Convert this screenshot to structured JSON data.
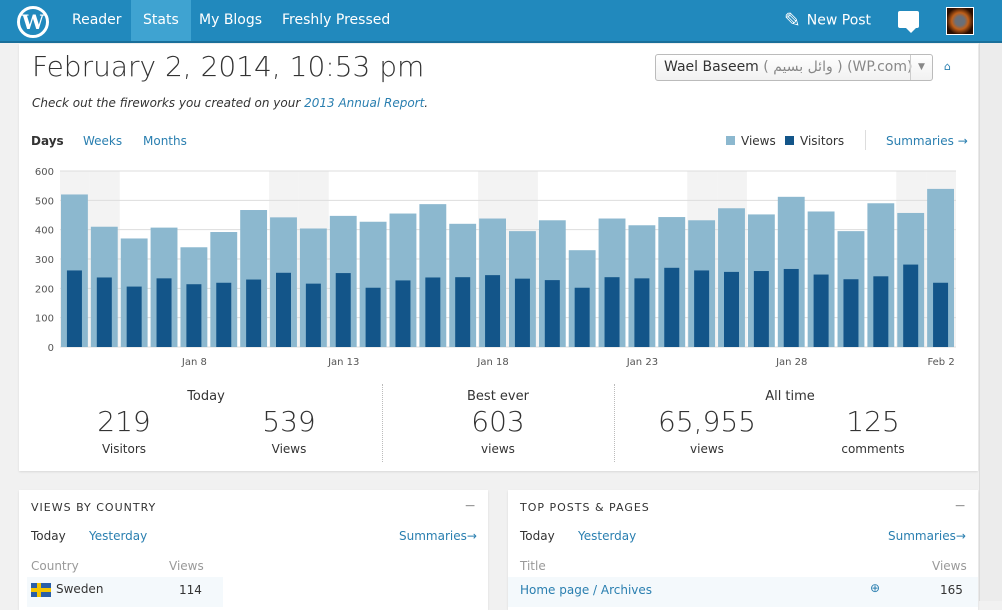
{
  "topbar": {
    "logo": "W",
    "nav": [
      "Reader",
      "Stats",
      "My Blogs",
      "Freshly Pressed"
    ],
    "active": "Stats",
    "new_post": "New Post"
  },
  "header": {
    "title": "February 2, 2014, 10:53 pm",
    "report_prefix": "Check out the fireworks you created on your ",
    "report_link": "2013 Annual Report",
    "report_suffix": ".",
    "blog_name": "Wael Baseem",
    "blog_extra": "( وائل بسيم ) (WP.com)"
  },
  "period_tabs": [
    "Days",
    "Weeks",
    "Months"
  ],
  "legend": {
    "views": "Views",
    "visitors": "Visitors",
    "summaries": "Summaries"
  },
  "colors": {
    "views": "#8cb8cf",
    "visitors": "#135589",
    "accent": "#2189bd"
  },
  "chart_data": {
    "type": "bar",
    "title": "",
    "ylim": [
      0,
      600
    ],
    "yticks": [
      0,
      100,
      200,
      300,
      400,
      500,
      600
    ],
    "x_labels": {
      "4": "Jan 8",
      "9": "Jan 13",
      "14": "Jan 18",
      "19": "Jan 23",
      "24": "Jan 28",
      "29": "Feb 2"
    },
    "categories": [
      "Jan 4",
      "Jan 5",
      "Jan 6",
      "Jan 7",
      "Jan 8",
      "Jan 9",
      "Jan 10",
      "Jan 11",
      "Jan 12",
      "Jan 13",
      "Jan 14",
      "Jan 15",
      "Jan 16",
      "Jan 17",
      "Jan 18",
      "Jan 19",
      "Jan 20",
      "Jan 21",
      "Jan 22",
      "Jan 23",
      "Jan 24",
      "Jan 25",
      "Jan 26",
      "Jan 27",
      "Jan 28",
      "Jan 29",
      "Jan 30",
      "Jan 31",
      "Feb 1",
      "Feb 2"
    ],
    "weekend_indices": [
      0,
      1,
      7,
      8,
      14,
      15,
      21,
      22,
      28,
      29
    ],
    "series": [
      {
        "name": "Views",
        "values": [
          520,
          410,
          370,
          407,
          340,
          392,
          467,
          442,
          404,
          447,
          427,
          455,
          487,
          420,
          438,
          395,
          432,
          330,
          438,
          415,
          443,
          432,
          473,
          452,
          512,
          462,
          395,
          490,
          457,
          539
        ]
      },
      {
        "name": "Visitors",
        "values": [
          261,
          237,
          206,
          234,
          214,
          219,
          230,
          253,
          216,
          252,
          202,
          227,
          237,
          238,
          245,
          233,
          228,
          202,
          238,
          234,
          270,
          261,
          256,
          259,
          266,
          247,
          231,
          241,
          281,
          219
        ]
      }
    ]
  },
  "summary": {
    "today": {
      "heading": "Today",
      "visitors": "219",
      "visitors_label": "Visitors",
      "views": "539",
      "views_label": "Views"
    },
    "best": {
      "heading": "Best ever",
      "views": "603",
      "views_label": "views"
    },
    "all_time": {
      "heading": "All time",
      "views": "65,955",
      "views_label": "views",
      "comments": "125",
      "comments_label": "comments"
    }
  },
  "country_box": {
    "title": "VIEWS BY COUNTRY",
    "tab_today": "Today",
    "tab_yesterday": "Yesterday",
    "summaries": "Summaries",
    "col1": "Country",
    "col2": "Views",
    "rows": [
      {
        "country": "Sweden",
        "views": "114"
      }
    ]
  },
  "posts_box": {
    "title": "TOP POSTS & PAGES",
    "tab_today": "Today",
    "tab_yesterday": "Yesterday",
    "summaries": "Summaries",
    "col1": "Title",
    "col2": "Views",
    "rows": [
      {
        "title": "Home page / Archives",
        "views": "165"
      }
    ]
  }
}
